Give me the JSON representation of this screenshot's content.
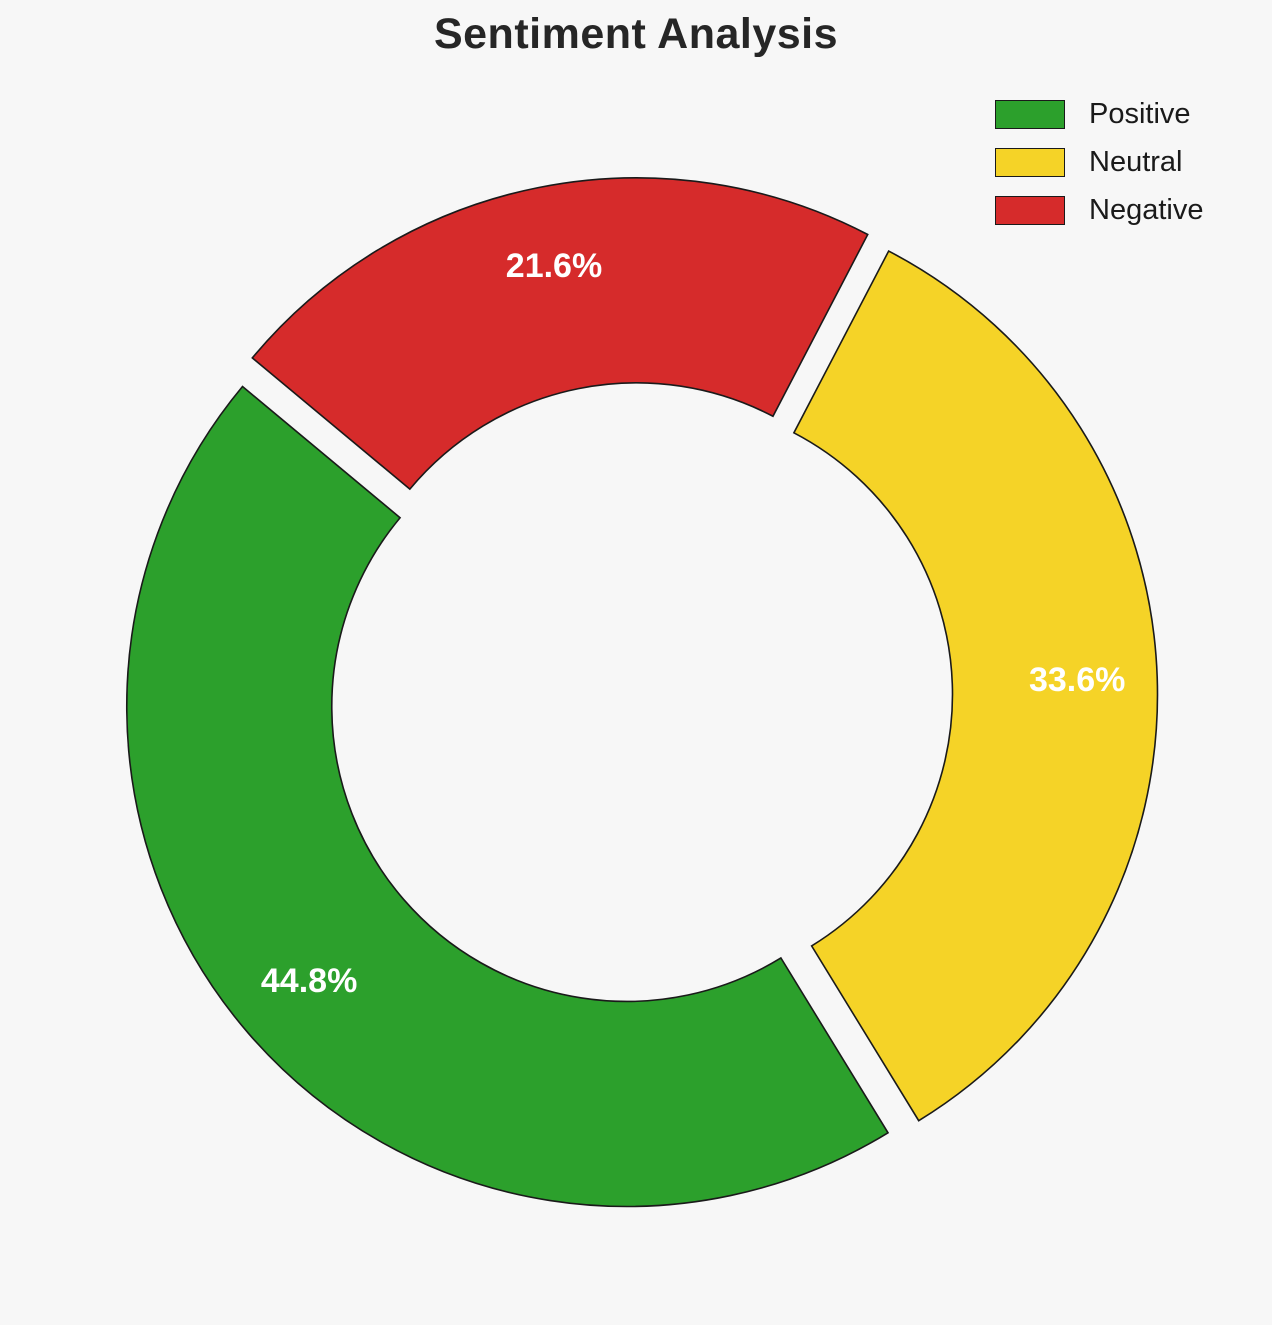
{
  "page": {
    "background_color": "#f7f7f7"
  },
  "chart_data": {
    "type": "pie",
    "variant": "donut",
    "title": "Sentiment Analysis",
    "slices": [
      {
        "label": "Positive",
        "value": 44.8,
        "pct_label": "44.8%",
        "color": "#2ca02c"
      },
      {
        "label": "Neutral",
        "value": 33.6,
        "pct_label": "33.6%",
        "color": "#f5d327"
      },
      {
        "label": "Negative",
        "value": 21.6,
        "pct_label": "21.6%",
        "color": "#d62b2b"
      }
    ],
    "legend": {
      "position": "upper right"
    },
    "start_angle_deg": -58.5,
    "direction": "counterclockwise",
    "draw_order": [
      1,
      2,
      0
    ],
    "explode": 0.035,
    "donut_hole_ratio": 0.59,
    "slice_label_color": "#ffffff",
    "edge_color": "#1a1a1a"
  }
}
